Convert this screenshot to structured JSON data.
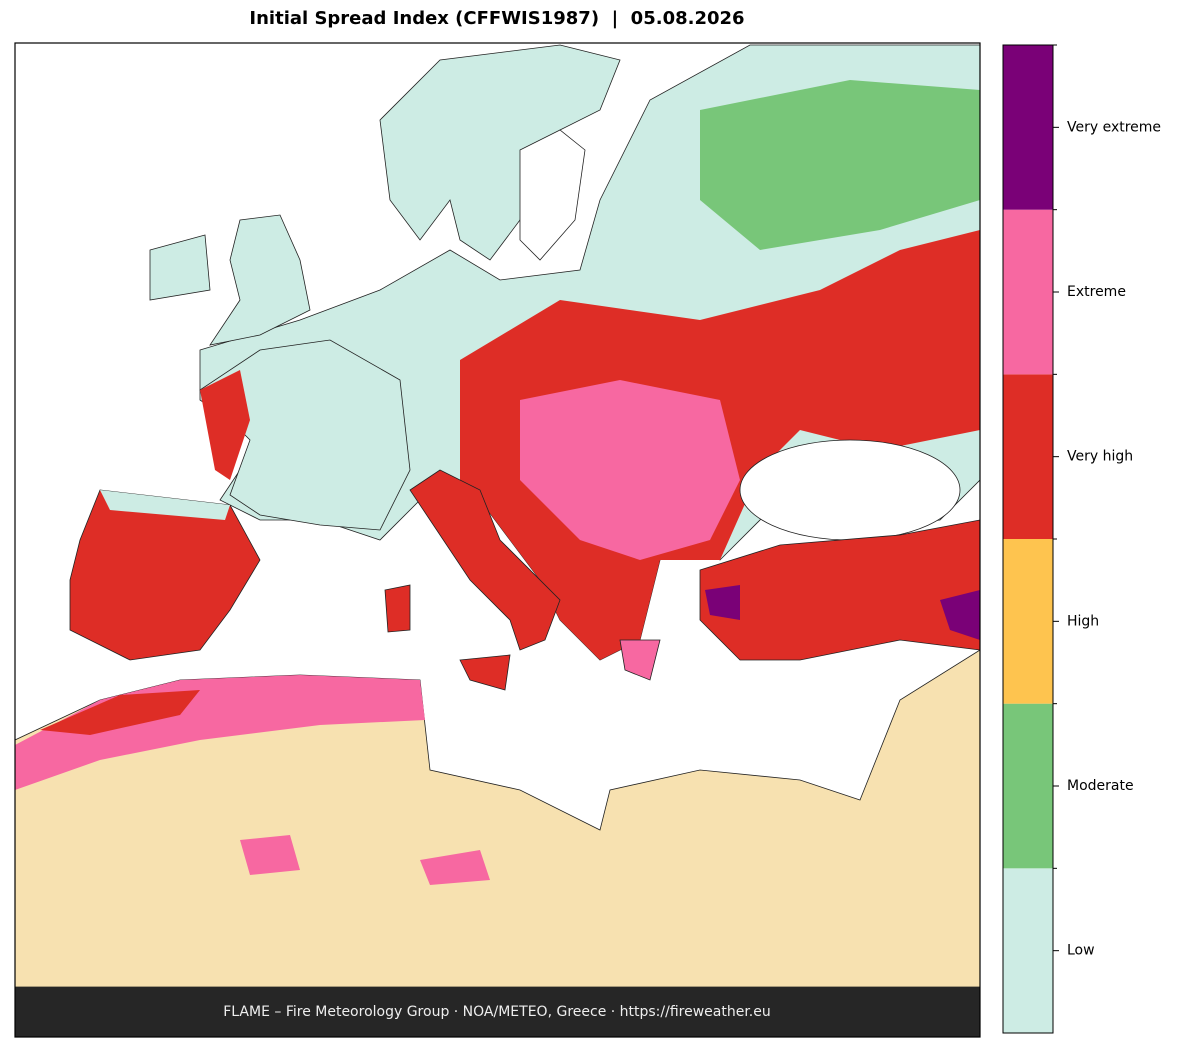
{
  "title": "Initial Spread Index (CFFWIS1987)  |  05.08.2026",
  "legend": {
    "categories": [
      "Low",
      "Moderate",
      "High",
      "Very high",
      "Extreme",
      "Very extreme"
    ],
    "colors": [
      "#cdece4",
      "#78c679",
      "#fec44f",
      "#de2d26",
      "#f768a1",
      "#7a0177"
    ]
  },
  "footer": "FLAME – Fire Meteorology Group · NOA/METEO, Greece · https://fireweather.eu"
}
